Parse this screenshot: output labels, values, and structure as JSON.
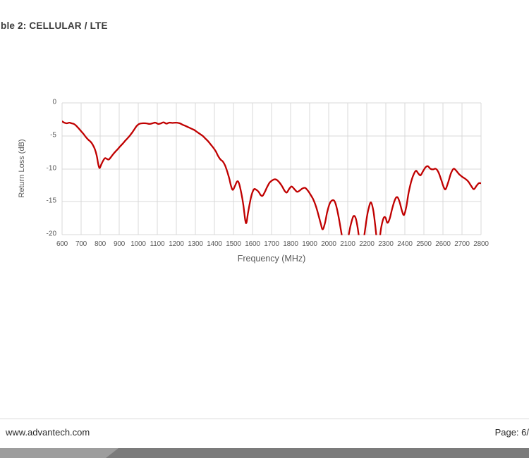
{
  "page": {
    "title": "ble 2: CELLULAR / LTE",
    "footer": {
      "website": "www.advantech.com",
      "page_label": "Page: 6/"
    },
    "footer_band": {
      "light_color": "#9d9d9d",
      "dark_color": "#7b7b7b"
    },
    "colors": {
      "divider": "#d9d9d9",
      "title_text": "#3c3c3c",
      "footer_text": "#2b2b2b"
    }
  },
  "chart_data": {
    "type": "line",
    "title": "",
    "xlabel": "Frequency (MHz)",
    "ylabel": "Return Loss (dB)",
    "xlim": [
      600,
      2800
    ],
    "ylim": [
      -20,
      0
    ],
    "x_ticks": [
      600,
      700,
      800,
      900,
      1000,
      1100,
      1200,
      1300,
      1400,
      1500,
      1600,
      1700,
      1800,
      1900,
      2000,
      2100,
      2200,
      2300,
      2400,
      2500,
      2600,
      2700,
      2800
    ],
    "y_ticks": [
      0,
      -5,
      -10,
      -15,
      -20
    ],
    "grid": true,
    "legend": false,
    "line_color": "#C00000",
    "grid_color": "#D9D9D9",
    "tick_color": "#595959",
    "series": [
      {
        "name": "return_loss",
        "points": [
          [
            600,
            -2.8
          ],
          [
            612,
            -3.0
          ],
          [
            625,
            -3.1
          ],
          [
            638,
            -3.0
          ],
          [
            650,
            -3.1
          ],
          [
            662,
            -3.2
          ],
          [
            675,
            -3.5
          ],
          [
            688,
            -3.9
          ],
          [
            700,
            -4.3
          ],
          [
            712,
            -4.7
          ],
          [
            725,
            -5.2
          ],
          [
            738,
            -5.6
          ],
          [
            750,
            -5.9
          ],
          [
            762,
            -6.4
          ],
          [
            772,
            -7.0
          ],
          [
            782,
            -8.0
          ],
          [
            790,
            -9.3
          ],
          [
            797,
            -9.9
          ],
          [
            805,
            -9.4
          ],
          [
            815,
            -8.8
          ],
          [
            825,
            -8.4
          ],
          [
            835,
            -8.5
          ],
          [
            845,
            -8.6
          ],
          [
            855,
            -8.3
          ],
          [
            868,
            -7.8
          ],
          [
            880,
            -7.4
          ],
          [
            893,
            -7.0
          ],
          [
            905,
            -6.6
          ],
          [
            918,
            -6.2
          ],
          [
            930,
            -5.8
          ],
          [
            943,
            -5.4
          ],
          [
            955,
            -5.0
          ],
          [
            968,
            -4.5
          ],
          [
            980,
            -4.0
          ],
          [
            992,
            -3.5
          ],
          [
            1005,
            -3.2
          ],
          [
            1020,
            -3.1
          ],
          [
            1040,
            -3.1
          ],
          [
            1060,
            -3.2
          ],
          [
            1075,
            -3.1
          ],
          [
            1090,
            -3.0
          ],
          [
            1105,
            -3.2
          ],
          [
            1120,
            -3.1
          ],
          [
            1133,
            -2.95
          ],
          [
            1148,
            -3.15
          ],
          [
            1163,
            -3.0
          ],
          [
            1180,
            -3.05
          ],
          [
            1200,
            -3.0
          ],
          [
            1218,
            -3.1
          ],
          [
            1232,
            -3.3
          ],
          [
            1248,
            -3.5
          ],
          [
            1263,
            -3.7
          ],
          [
            1278,
            -3.9
          ],
          [
            1293,
            -4.1
          ],
          [
            1308,
            -4.4
          ],
          [
            1323,
            -4.7
          ],
          [
            1338,
            -5.0
          ],
          [
            1352,
            -5.4
          ],
          [
            1366,
            -5.8
          ],
          [
            1380,
            -6.3
          ],
          [
            1394,
            -6.8
          ],
          [
            1408,
            -7.4
          ],
          [
            1420,
            -8.1
          ],
          [
            1432,
            -8.6
          ],
          [
            1444,
            -8.9
          ],
          [
            1456,
            -9.5
          ],
          [
            1468,
            -10.5
          ],
          [
            1478,
            -11.5
          ],
          [
            1488,
            -12.7
          ],
          [
            1497,
            -13.2
          ],
          [
            1508,
            -12.6
          ],
          [
            1520,
            -11.9
          ],
          [
            1530,
            -12.3
          ],
          [
            1542,
            -13.8
          ],
          [
            1552,
            -15.5
          ],
          [
            1562,
            -17.8
          ],
          [
            1568,
            -18.2
          ],
          [
            1576,
            -16.8
          ],
          [
            1586,
            -15.2
          ],
          [
            1596,
            -13.9
          ],
          [
            1608,
            -13.1
          ],
          [
            1620,
            -13.2
          ],
          [
            1632,
            -13.5
          ],
          [
            1643,
            -14.0
          ],
          [
            1653,
            -14.1
          ],
          [
            1665,
            -13.5
          ],
          [
            1678,
            -12.7
          ],
          [
            1690,
            -12.1
          ],
          [
            1702,
            -11.8
          ],
          [
            1715,
            -11.6
          ],
          [
            1728,
            -11.7
          ],
          [
            1742,
            -12.1
          ],
          [
            1756,
            -12.7
          ],
          [
            1770,
            -13.4
          ],
          [
            1780,
            -13.6
          ],
          [
            1794,
            -13.0
          ],
          [
            1806,
            -12.7
          ],
          [
            1820,
            -13.1
          ],
          [
            1834,
            -13.5
          ],
          [
            1848,
            -13.3
          ],
          [
            1862,
            -13.0
          ],
          [
            1876,
            -12.9
          ],
          [
            1890,
            -13.3
          ],
          [
            1904,
            -13.9
          ],
          [
            1918,
            -14.6
          ],
          [
            1932,
            -15.6
          ],
          [
            1946,
            -17.0
          ],
          [
            1958,
            -18.3
          ],
          [
            1968,
            -19.2
          ],
          [
            1980,
            -18.3
          ],
          [
            1992,
            -16.6
          ],
          [
            2005,
            -15.3
          ],
          [
            2018,
            -14.8
          ],
          [
            2030,
            -14.9
          ],
          [
            2042,
            -15.9
          ],
          [
            2054,
            -17.6
          ],
          [
            2066,
            -19.6
          ],
          [
            2078,
            -21.5
          ],
          [
            2092,
            -22.0
          ],
          [
            2104,
            -20.2
          ],
          [
            2116,
            -18.5
          ],
          [
            2130,
            -17.2
          ],
          [
            2142,
            -17.5
          ],
          [
            2152,
            -18.9
          ],
          [
            2162,
            -20.8
          ],
          [
            2174,
            -21.8
          ],
          [
            2186,
            -20.3
          ],
          [
            2198,
            -17.8
          ],
          [
            2210,
            -16.0
          ],
          [
            2222,
            -15.1
          ],
          [
            2234,
            -16.3
          ],
          [
            2244,
            -18.5
          ],
          [
            2254,
            -21.0
          ],
          [
            2264,
            -21.2
          ],
          [
            2276,
            -18.9
          ],
          [
            2288,
            -17.5
          ],
          [
            2298,
            -17.4
          ],
          [
            2308,
            -18.2
          ],
          [
            2320,
            -17.6
          ],
          [
            2334,
            -16.0
          ],
          [
            2348,
            -14.7
          ],
          [
            2360,
            -14.3
          ],
          [
            2372,
            -15.0
          ],
          [
            2386,
            -16.5
          ],
          [
            2396,
            -17.0
          ],
          [
            2408,
            -15.7
          ],
          [
            2420,
            -13.6
          ],
          [
            2432,
            -12.1
          ],
          [
            2444,
            -11.0
          ],
          [
            2458,
            -10.3
          ],
          [
            2470,
            -10.7
          ],
          [
            2482,
            -11.0
          ],
          [
            2495,
            -10.4
          ],
          [
            2508,
            -9.8
          ],
          [
            2520,
            -9.6
          ],
          [
            2534,
            -10.0
          ],
          [
            2548,
            -10.1
          ],
          [
            2562,
            -10.0
          ],
          [
            2576,
            -10.5
          ],
          [
            2590,
            -11.6
          ],
          [
            2604,
            -12.8
          ],
          [
            2614,
            -13.1
          ],
          [
            2628,
            -12.0
          ],
          [
            2642,
            -10.7
          ],
          [
            2656,
            -10.0
          ],
          [
            2670,
            -10.3
          ],
          [
            2684,
            -10.8
          ],
          [
            2700,
            -11.2
          ],
          [
            2716,
            -11.5
          ],
          [
            2732,
            -11.9
          ],
          [
            2748,
            -12.6
          ],
          [
            2762,
            -13.1
          ],
          [
            2776,
            -12.6
          ],
          [
            2788,
            -12.2
          ],
          [
            2800,
            -12.2
          ]
        ]
      }
    ]
  }
}
